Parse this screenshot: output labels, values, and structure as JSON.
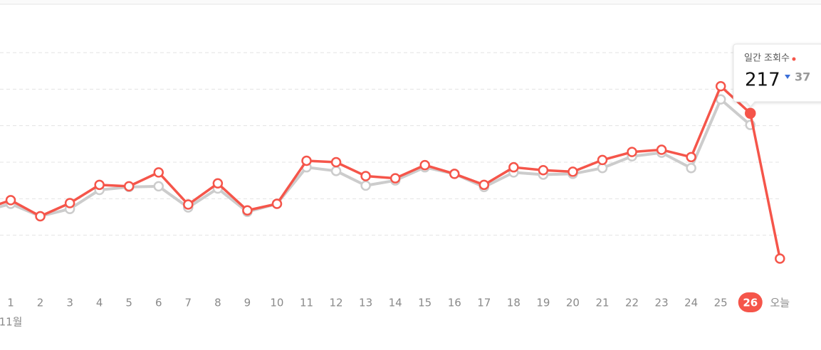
{
  "chart_data": {
    "type": "line",
    "categories": [
      null,
      "1",
      "2",
      "3",
      "4",
      "5",
      "6",
      "7",
      "8",
      "9",
      "10",
      "11",
      "12",
      "13",
      "14",
      "15",
      "16",
      "17",
      "18",
      "19",
      "20",
      "21",
      "22",
      "23",
      "24",
      "25",
      "26",
      "오늘"
    ],
    "x_sublabel": "11월",
    "series": [
      {
        "color": "#f5554a",
        "values": [
          84,
          98,
          76,
          94,
          119,
          117,
          136,
          92,
          121,
          84,
          93,
          152,
          150,
          131,
          128,
          146,
          134,
          119,
          143,
          139,
          137,
          153,
          164,
          167,
          157,
          254,
          217,
          18
        ]
      },
      {
        "color": "#cccccc",
        "values": [
          82,
          93,
          76,
          86,
          112,
          116,
          117,
          88,
          114,
          82,
          93,
          143,
          138,
          118,
          125,
          143,
          134,
          116,
          136,
          133,
          134,
          142,
          158,
          163,
          142,
          236,
          201,
          null
        ]
      }
    ],
    "ylim": [
      0,
      300
    ],
    "yticks": [
      50,
      100,
      150,
      200,
      250,
      300
    ],
    "grid": true,
    "selected_index": 26,
    "tooltip": {
      "title": "일간 조회수",
      "delta": 37
    }
  }
}
